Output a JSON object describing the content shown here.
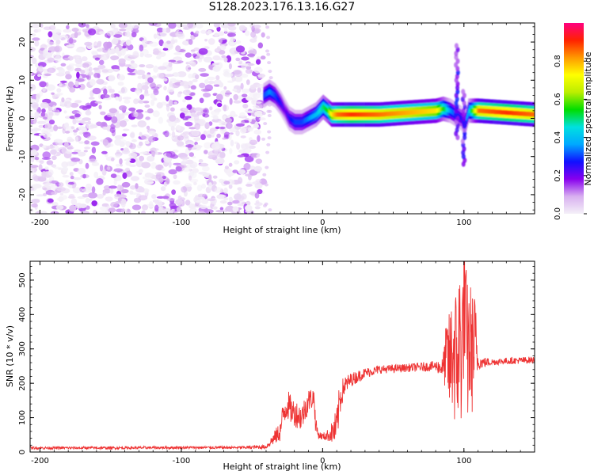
{
  "title": "S128.2023.176.13.16.G27",
  "colorbar_label": "Normalized spectral amplitude",
  "colorbar_ticks": [
    "0.0",
    "0.2",
    "0.4",
    "0.6",
    "0.8"
  ],
  "colorbar_tick_values": [
    0.0,
    0.2,
    0.4,
    0.6,
    0.8
  ],
  "colorbar_range": [
    0,
    1
  ],
  "colorbar_colors": [
    "#f4f0f8",
    "#d8b0f0",
    "#8800ee",
    "#1010ff",
    "#00a8ff",
    "#00e0e0",
    "#00dd00",
    "#bbee00",
    "#ffff00",
    "#ff9900",
    "#ff2200",
    "#ff0080"
  ],
  "chart_data": [
    {
      "type": "heatmap",
      "xlabel": "Height of straight line (km)",
      "ylabel": "Frequency (Hz)",
      "xlim": [
        -207,
        150
      ],
      "ylim": [
        -25,
        25
      ],
      "x_ticks": [
        -200,
        -100,
        0,
        100
      ],
      "x_tick_labels": [
        "-200",
        "-100",
        "0",
        "100"
      ],
      "y_ticks": [
        -20,
        -10,
        0,
        10,
        20
      ],
      "y_tick_labels": [
        "-20",
        "-10",
        "0",
        "10",
        "20"
      ],
      "noise_region_x": [
        -207,
        -42
      ],
      "ridge": {
        "x": [
          -42,
          -38,
          -34,
          -30,
          -27,
          -24,
          -20,
          -15,
          -10,
          -5,
          0,
          3,
          6,
          10,
          20,
          40,
          60,
          80,
          85,
          90,
          94,
          98,
          100,
          103,
          106,
          110,
          130,
          150
        ],
        "frequency": [
          6,
          7,
          6,
          4,
          2,
          0,
          -1,
          -1,
          0,
          1,
          3,
          2,
          1,
          1,
          1,
          1,
          1.5,
          2,
          2.5,
          2,
          1,
          0,
          -2,
          2,
          2,
          2,
          1.5,
          1
        ],
        "amplitude": [
          0.3,
          0.35,
          0.3,
          0.25,
          0.2,
          0.25,
          0.3,
          0.3,
          0.35,
          0.4,
          0.5,
          0.55,
          0.75,
          0.85,
          0.9,
          0.85,
          0.8,
          0.75,
          0.55,
          0.35,
          0.3,
          0.25,
          0.3,
          0.4,
          0.6,
          0.85,
          0.9,
          0.85
        ]
      },
      "spike_features": [
        {
          "x": 95,
          "frequency_range": [
            -5,
            20
          ]
        },
        {
          "x": 100,
          "frequency_range": [
            -12,
            8
          ]
        }
      ]
    },
    {
      "type": "line",
      "xlabel": "Height of straight line (km)",
      "ylabel": "SNR (10 * v/v)",
      "xlim": [
        -207,
        150
      ],
      "ylim": [
        0,
        555
      ],
      "x_ticks": [
        -200,
        -100,
        0,
        100
      ],
      "x_tick_labels": [
        "-200",
        "-100",
        "0",
        "100"
      ],
      "y_ticks": [
        0,
        100,
        200,
        300,
        400,
        500
      ],
      "y_tick_labels": [
        "0",
        "100",
        "200",
        "300",
        "400",
        "500"
      ],
      "color": "#ee3333",
      "series": [
        {
          "x": [
            -207,
            -150,
            -100,
            -60,
            -40,
            -30,
            -28,
            -25,
            -22,
            -20,
            -15,
            -10,
            -6,
            -5,
            -3,
            0,
            5,
            10,
            12,
            15,
            20,
            30,
            40,
            60,
            80,
            85,
            88,
            90,
            92,
            95,
            97,
            99,
            100,
            102,
            104,
            106,
            108,
            110,
            120,
            130,
            150
          ],
          "y": [
            12,
            12,
            13,
            13,
            15,
            60,
            110,
            140,
            120,
            115,
            100,
            150,
            160,
            80,
            50,
            45,
            50,
            70,
            150,
            190,
            210,
            230,
            240,
            245,
            250,
            245,
            280,
            250,
            300,
            260,
            330,
            300,
            470,
            280,
            310,
            290,
            320,
            260,
            262,
            265,
            268
          ],
          "band": [
            4,
            4,
            4,
            4,
            6,
            30,
            40,
            45,
            40,
            40,
            40,
            35,
            30,
            25,
            12,
            10,
            20,
            60,
            50,
            30,
            20,
            15,
            12,
            12,
            15,
            30,
            120,
            160,
            200,
            220,
            240,
            250,
            240,
            220,
            200,
            180,
            150,
            20,
            10,
            10,
            10
          ]
        }
      ]
    }
  ]
}
